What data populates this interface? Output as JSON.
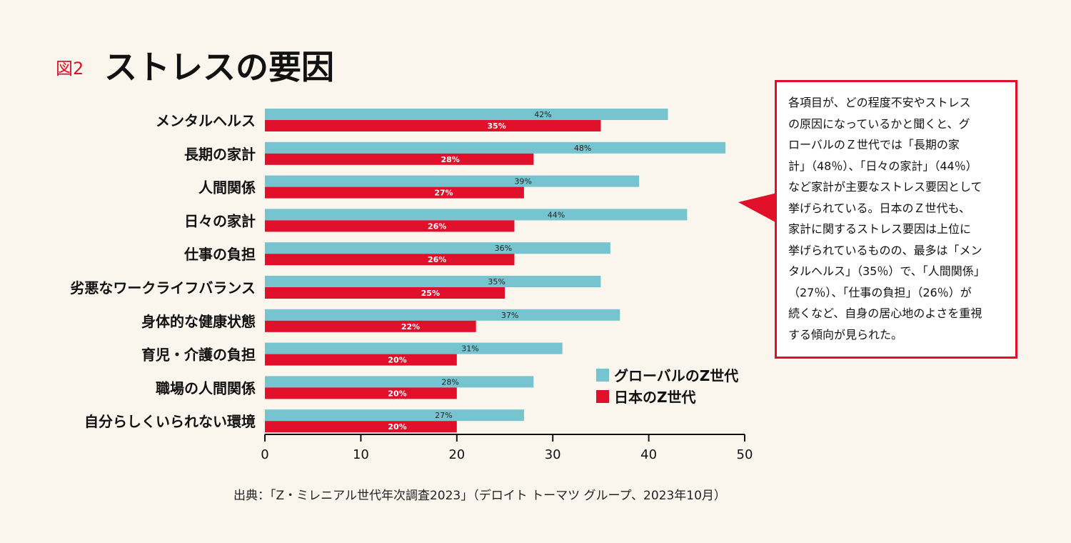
{
  "figure_label": "図2",
  "title": "ストレスの要因",
  "note_lines": [
    "各項目が、どの程度不安やストレス",
    "の原因になっているかと聞くと、グ",
    "ローバルのＺ世代では「長期の家",
    "計」（48％）、「日々の家計」（44％）",
    "など家計が主要なストレス要因として",
    "挙げられている。日本のＺ世代も、",
    "家計に関するストレス要因は上位に",
    "挙げられているものの、最多は「メン",
    "タルヘルス」（35％）で、「人間関係」",
    "（27％）、「仕事の負担」（26％）が",
    "続くなど、自身の居心地のよさを重視",
    "する傾向が見られた。"
  ],
  "source": "出典：「Z・ミレニアル世代年次調査2023」（デロイト トーマツ グループ、2023年10月）",
  "colors": {
    "global": "#75c4cf",
    "japan": "#e0102a",
    "accent": "#e0102a",
    "background": "#faf6ee"
  },
  "chart_data": {
    "type": "bar",
    "orientation": "horizontal",
    "title": "ストレスの要因",
    "categories": [
      "メンタルヘルス",
      "長期の家計",
      "人間関係",
      "日々の家計",
      "仕事の負担",
      "劣悪なワークライフバランス",
      "身体的な健康状態",
      "育児・介護の負担",
      "職場の人間関係",
      "自分らしくいられない環境"
    ],
    "series": [
      {
        "name": "グローバルのZ世代",
        "color": "#75c4cf",
        "values": [
          42,
          48,
          39,
          44,
          36,
          35,
          37,
          31,
          28,
          27
        ]
      },
      {
        "name": "日本のZ世代",
        "color": "#e0102a",
        "values": [
          35,
          28,
          27,
          26,
          26,
          25,
          22,
          20,
          20,
          20
        ]
      }
    ],
    "value_suffix": "%",
    "xlim": [
      0,
      50
    ],
    "xticks": [
      0,
      10,
      20,
      30,
      40,
      50
    ],
    "legend_position": "bottom-right",
    "grid": false
  }
}
